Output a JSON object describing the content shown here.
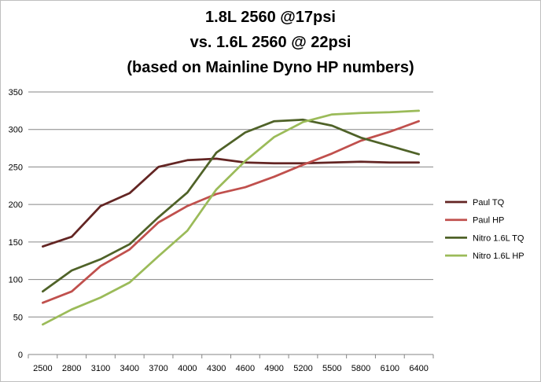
{
  "chart_data": {
    "type": "line",
    "title": [
      "1.8L 2560 @17psi",
      "vs. 1.6L 2560 @ 22psi",
      "(based on Mainline Dyno HP numbers)"
    ],
    "xlabel": "",
    "ylabel": "",
    "categories": [
      "2500",
      "2800",
      "3100",
      "3400",
      "3700",
      "4000",
      "4300",
      "4600",
      "4900",
      "5200",
      "5500",
      "5800",
      "6100",
      "6400"
    ],
    "ylim": [
      0,
      350
    ],
    "yticks": [
      0,
      50,
      100,
      150,
      200,
      250,
      300,
      350
    ],
    "grid": "horizontal",
    "legend_position": "right",
    "series": [
      {
        "name": "Paul TQ",
        "color": "#632523",
        "values": [
          144,
          157,
          198,
          215,
          250,
          259,
          261,
          256,
          255,
          255,
          256,
          257,
          256,
          256
        ]
      },
      {
        "name": "Paul HP",
        "color": "#c0504d",
        "values": [
          69,
          84,
          118,
          140,
          176,
          198,
          214,
          223,
          237,
          253,
          268,
          285,
          297,
          311
        ]
      },
      {
        "name": "Nitro 1.6L TQ",
        "color": "#4f6228",
        "values": [
          84,
          112,
          127,
          147,
          183,
          216,
          269,
          296,
          311,
          313,
          305,
          289,
          278,
          267
        ]
      },
      {
        "name": "Nitro 1.6L HP",
        "color": "#9bbb59",
        "values": [
          40,
          60,
          76,
          96,
          131,
          165,
          220,
          258,
          290,
          310,
          320,
          322,
          323,
          325
        ]
      }
    ]
  }
}
